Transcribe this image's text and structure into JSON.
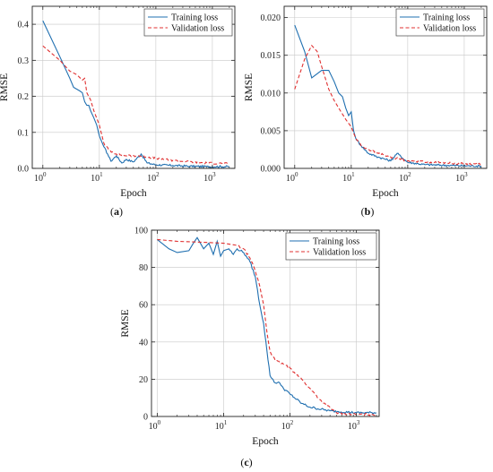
{
  "chart_data": [
    {
      "type": "line",
      "panel_label": "(a)",
      "xlabel": "Epoch",
      "ylabel": "RMSE",
      "xscale": "log",
      "xlim": [
        0.65,
        2500
      ],
      "ylim": [
        0,
        0.45
      ],
      "yticks": [
        0.0,
        0.1,
        0.2,
        0.3,
        0.4
      ],
      "ytick_labels": [
        "0.0",
        "0.1",
        "0.2",
        "0.3",
        "0.4"
      ],
      "xticks": [
        1,
        10,
        100,
        1000
      ],
      "xtick_labels": [
        {
          "base": "10",
          "exp": "0"
        },
        {
          "base": "10",
          "exp": "1"
        },
        {
          "base": "10",
          "exp": "2"
        },
        {
          "base": "10",
          "exp": "3"
        }
      ],
      "grid": true,
      "legend_position": "top-right",
      "series": [
        {
          "name": "Training loss",
          "style": "solid",
          "color": "#1f6fb0",
          "points": [
            [
              1,
              0.41
            ],
            [
              2,
              0.31
            ],
            [
              3,
              0.25
            ],
            [
              3.5,
              0.225
            ],
            [
              4.5,
              0.215
            ],
            [
              5,
              0.21
            ],
            [
              5.5,
              0.185
            ],
            [
              6,
              0.175
            ],
            [
              6.5,
              0.175
            ],
            [
              7,
              0.16
            ],
            [
              8,
              0.14
            ],
            [
              9,
              0.12
            ],
            [
              10,
              0.09
            ],
            [
              12,
              0.06
            ],
            [
              14,
              0.04
            ],
            [
              16,
              0.02
            ],
            [
              20,
              0.035
            ],
            [
              25,
              0.015
            ],
            [
              30,
              0.025
            ],
            [
              40,
              0.018
            ],
            [
              55,
              0.04
            ],
            [
              70,
              0.015
            ],
            [
              100,
              0.01
            ],
            [
              200,
              0.008
            ],
            [
              400,
              0.006
            ],
            [
              800,
              0.005
            ],
            [
              2000,
              0.005
            ]
          ]
        },
        {
          "name": "Validation loss",
          "style": "dashed",
          "color": "#e03030",
          "points": [
            [
              1,
              0.34
            ],
            [
              2,
              0.3
            ],
            [
              3,
              0.27
            ],
            [
              4,
              0.26
            ],
            [
              5,
              0.245
            ],
            [
              5.5,
              0.25
            ],
            [
              6,
              0.21
            ],
            [
              7,
              0.19
            ],
            [
              8,
              0.16
            ],
            [
              10,
              0.12
            ],
            [
              12,
              0.07
            ],
            [
              15,
              0.05
            ],
            [
              20,
              0.04
            ],
            [
              30,
              0.035
            ],
            [
              50,
              0.035
            ],
            [
              100,
              0.028
            ],
            [
              200,
              0.022
            ],
            [
              400,
              0.018
            ],
            [
              800,
              0.015
            ],
            [
              2000,
              0.013
            ]
          ]
        }
      ]
    },
    {
      "type": "line",
      "panel_label": "(b)",
      "xlabel": "Epoch",
      "ylabel": "RMSE",
      "xscale": "log",
      "xlim": [
        0.65,
        2500
      ],
      "ylim": [
        0,
        0.0215
      ],
      "yticks": [
        0.0,
        0.005,
        0.01,
        0.015,
        0.02
      ],
      "ytick_labels": [
        "0.000",
        "0.005",
        "0.010",
        "0.015",
        "0.020"
      ],
      "xticks": [
        1,
        10,
        100,
        1000
      ],
      "xtick_labels": [
        {
          "base": "10",
          "exp": "0"
        },
        {
          "base": "10",
          "exp": "1"
        },
        {
          "base": "10",
          "exp": "2"
        },
        {
          "base": "10",
          "exp": "3"
        }
      ],
      "grid": true,
      "legend_position": "top-right",
      "series": [
        {
          "name": "Training loss",
          "style": "solid",
          "color": "#1f6fb0",
          "points": [
            [
              1,
              0.019
            ],
            [
              1.5,
              0.0155
            ],
            [
              2,
              0.012
            ],
            [
              3,
              0.013
            ],
            [
              4,
              0.013
            ],
            [
              5,
              0.0115
            ],
            [
              6,
              0.01
            ],
            [
              7,
              0.0095
            ],
            [
              8,
              0.008
            ],
            [
              9,
              0.007
            ],
            [
              10,
              0.0075
            ],
            [
              11,
              0.005
            ],
            [
              12,
              0.004
            ],
            [
              15,
              0.003
            ],
            [
              20,
              0.002
            ],
            [
              30,
              0.0015
            ],
            [
              50,
              0.001
            ],
            [
              65,
              0.002
            ],
            [
              100,
              0.0008
            ],
            [
              200,
              0.0005
            ],
            [
              500,
              0.0004
            ],
            [
              2000,
              0.0003
            ]
          ]
        },
        {
          "name": "Validation loss",
          "style": "dashed",
          "color": "#e03030",
          "points": [
            [
              1,
              0.0105
            ],
            [
              1.5,
              0.0145
            ],
            [
              2,
              0.0163
            ],
            [
              2.5,
              0.0155
            ],
            [
              3,
              0.0135
            ],
            [
              4,
              0.0105
            ],
            [
              5,
              0.009
            ],
            [
              6,
              0.008
            ],
            [
              8,
              0.0065
            ],
            [
              10,
              0.0055
            ],
            [
              12,
              0.004
            ],
            [
              15,
              0.003
            ],
            [
              20,
              0.0025
            ],
            [
              30,
              0.002
            ],
            [
              50,
              0.0015
            ],
            [
              100,
              0.001
            ],
            [
              300,
              0.0008
            ],
            [
              1000,
              0.0006
            ],
            [
              2000,
              0.0006
            ]
          ]
        }
      ]
    },
    {
      "type": "line",
      "panel_label": "(c)",
      "xlabel": "Epoch",
      "ylabel": "RMSE",
      "xscale": "log",
      "xlim": [
        0.82,
        2200
      ],
      "ylim": [
        0,
        100
      ],
      "yticks": [
        0,
        20,
        40,
        60,
        80,
        100
      ],
      "ytick_labels": [
        "0",
        "20",
        "40",
        "60",
        "80",
        "100"
      ],
      "xticks": [
        1,
        10,
        100,
        1000
      ],
      "xtick_labels": [
        {
          "base": "10",
          "exp": "0"
        },
        {
          "base": "10",
          "exp": "1"
        },
        {
          "base": "10",
          "exp": "2"
        },
        {
          "base": "10",
          "exp": "3"
        }
      ],
      "grid": true,
      "legend_position": "top-right",
      "series": [
        {
          "name": "Training loss",
          "style": "solid",
          "color": "#1f6fb0",
          "points": [
            [
              1,
              95
            ],
            [
              1.5,
              90
            ],
            [
              2,
              88
            ],
            [
              3,
              89
            ],
            [
              3.5,
              93
            ],
            [
              4,
              96
            ],
            [
              5,
              90
            ],
            [
              6,
              93
            ],
            [
              7,
              87
            ],
            [
              8,
              94
            ],
            [
              9,
              86
            ],
            [
              10,
              89
            ],
            [
              12,
              90
            ],
            [
              14,
              87
            ],
            [
              16,
              90
            ],
            [
              18,
              89
            ],
            [
              20,
              88
            ],
            [
              22,
              86
            ],
            [
              25,
              83
            ],
            [
              30,
              75
            ],
            [
              35,
              60
            ],
            [
              40,
              50
            ],
            [
              45,
              35
            ],
            [
              50,
              22
            ],
            [
              60,
              18
            ],
            [
              70,
              18
            ],
            [
              80,
              15
            ],
            [
              100,
              12
            ],
            [
              150,
              7
            ],
            [
              200,
              5
            ],
            [
              400,
              3
            ],
            [
              1000,
              2
            ],
            [
              2000,
              2
            ]
          ]
        },
        {
          "name": "Validation loss",
          "style": "dashed",
          "color": "#e03030",
          "points": [
            [
              1,
              95
            ],
            [
              2,
              94
            ],
            [
              5,
              93.5
            ],
            [
              10,
              93
            ],
            [
              15,
              92
            ],
            [
              20,
              90
            ],
            [
              25,
              85
            ],
            [
              30,
              78
            ],
            [
              35,
              70
            ],
            [
              40,
              60
            ],
            [
              45,
              45
            ],
            [
              50,
              35
            ],
            [
              60,
              30
            ],
            [
              80,
              28
            ],
            [
              100,
              26
            ],
            [
              150,
              20
            ],
            [
              200,
              15
            ],
            [
              300,
              8
            ],
            [
              500,
              2
            ],
            [
              1000,
              1
            ],
            [
              2000,
              1
            ]
          ]
        }
      ]
    }
  ]
}
